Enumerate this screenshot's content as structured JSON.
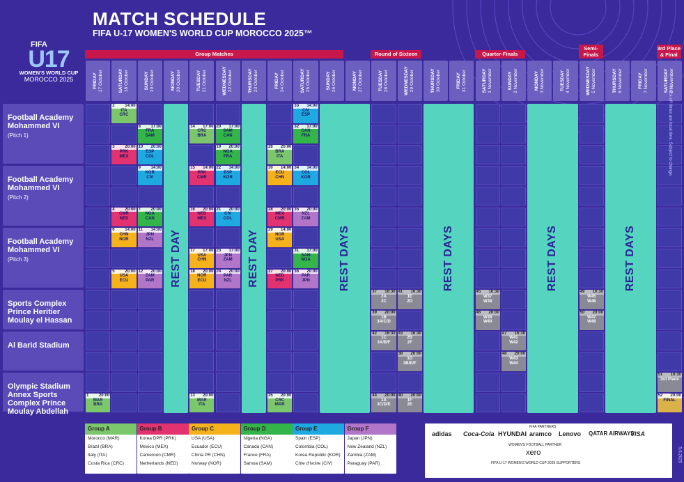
{
  "header": {
    "title": "MATCH SCHEDULE",
    "subtitle": "FIFA U-17 WOMEN'S WORLD CUP MOROCCO 2025™"
  },
  "logo": {
    "fifa": "FIFA",
    "u17": "U17",
    "wwc": "WOMEN'S WORLD CUP",
    "country": "MOROCCO 2025"
  },
  "phases": [
    {
      "label": "Group Matches",
      "from": 0,
      "to": 9
    },
    {
      "label": "Round of Sixteen",
      "from": 11,
      "to": 12
    },
    {
      "label": "Quarter-Finals",
      "from": 15,
      "to": 16
    },
    {
      "label": "Semi-Finals",
      "from": 19,
      "to": 19
    },
    {
      "label": "3rd Place & Final",
      "from": 22,
      "to": 22
    }
  ],
  "days": [
    {
      "day": "FRIDAY",
      "date": "17 October"
    },
    {
      "day": "SATURDAY",
      "date": "18 October"
    },
    {
      "day": "SUNDAY",
      "date": "19 October"
    },
    {
      "day": "MONDAY",
      "date": "20 October"
    },
    {
      "day": "TUESDAY",
      "date": "21 October"
    },
    {
      "day": "WEDNESDAY",
      "date": "22 October"
    },
    {
      "day": "THURSDAY",
      "date": "23 October"
    },
    {
      "day": "FRIDAY",
      "date": "24 October"
    },
    {
      "day": "SATURDAY",
      "date": "25 October"
    },
    {
      "day": "SUNDAY",
      "date": "26 October"
    },
    {
      "day": "MONDAY",
      "date": "27 October"
    },
    {
      "day": "TUESDAY",
      "date": "28 October"
    },
    {
      "day": "WEDNESDAY",
      "date": "29 October"
    },
    {
      "day": "THURSDAY",
      "date": "30 October"
    },
    {
      "day": "FRIDAY",
      "date": "31 October"
    },
    {
      "day": "SATURDAY",
      "date": "1 November"
    },
    {
      "day": "SUNDAY",
      "date": "2 November"
    },
    {
      "day": "MONDAY",
      "date": "3 November"
    },
    {
      "day": "TUESDAY",
      "date": "4 November"
    },
    {
      "day": "WEDNESDAY",
      "date": "5 November"
    },
    {
      "day": "THURSDAY",
      "date": "6 November"
    },
    {
      "day": "FRIDAY",
      "date": "7 November"
    },
    {
      "day": "SATURDAY",
      "date": "8 November"
    }
  ],
  "venues": [
    {
      "name": "Football Academy Mohammed VI",
      "sub": "(Pitch 1)"
    },
    {
      "name": "Football Academy Mohammed VI",
      "sub": "(Pitch 2)"
    },
    {
      "name": "Football Academy Mohammed VI",
      "sub": "(Pitch 3)"
    },
    {
      "name": "Sports Complex Prince Heritier Moulay el Hassan",
      "sub": ""
    },
    {
      "name": "Al Barid Stadium",
      "sub": ""
    },
    {
      "name": "Olympic Stadium Annex Sports Complex Prince Moulay Abdellah",
      "sub": ""
    }
  ],
  "rest": [
    {
      "label": "REST DAY",
      "col": 3
    },
    {
      "label": "REST DAY",
      "col": 6
    },
    {
      "label": "REST DAYS",
      "col": 9,
      "span": 2
    },
    {
      "label": "REST DAYS",
      "col": 13,
      "span": 2
    },
    {
      "label": "REST DAYS",
      "col": 17,
      "span": 2
    },
    {
      "label": "REST DAYS",
      "col": 20,
      "span": 2
    }
  ],
  "matches": [
    {
      "n": "2",
      "time": "14:00",
      "t1": "ITA",
      "t2": "CRC",
      "col": 1,
      "slot": 0,
      "g": "gA"
    },
    {
      "n": "8",
      "time": "17:00",
      "t1": "FRA",
      "t2": "SAM",
      "col": 2,
      "slot": 1,
      "g": "gD"
    },
    {
      "n": "3",
      "time": "20:00",
      "t1": "PRK",
      "t2": "MEX",
      "col": 1,
      "slot": 2,
      "g": "gB"
    },
    {
      "n": "10",
      "time": "20:00",
      "t1": "ESP",
      "t2": "COL",
      "col": 2,
      "slot": 2,
      "g": "gE"
    },
    {
      "n": "14",
      "time": "17:00",
      "t1": "CRC",
      "t2": "BRA",
      "col": 4,
      "slot": 1,
      "g": "gA"
    },
    {
      "n": "20",
      "time": "17:00",
      "t1": "SAM",
      "t2": "CAN",
      "col": 5,
      "slot": 1,
      "g": "gD"
    },
    {
      "n": "19",
      "time": "20:00",
      "t1": "NGA",
      "t2": "FRA",
      "col": 5,
      "slot": 2,
      "g": "gD"
    },
    {
      "n": "33",
      "time": "14:00",
      "t1": "CIV",
      "t2": "ESP",
      "col": 8,
      "slot": 0,
      "g": "gE"
    },
    {
      "n": "32",
      "time": "17:00",
      "t1": "CAN",
      "t2": "FRA",
      "col": 8,
      "slot": 1,
      "g": "gD"
    },
    {
      "n": "26",
      "time": "20:00",
      "t1": "BRA",
      "t2": "ITA",
      "col": 7,
      "slot": 2,
      "g": "gA"
    },
    {
      "n": "9",
      "time": "14:00",
      "t1": "KOR",
      "t2": "CIV",
      "col": 2,
      "slot": 3,
      "g": "gE"
    },
    {
      "n": "15",
      "time": "14:00",
      "t1": "PRK",
      "t2": "CMR",
      "col": 4,
      "slot": 3,
      "g": "gB"
    },
    {
      "n": "22",
      "time": "14:00",
      "t1": "ESP",
      "t2": "KOR",
      "col": 5,
      "slot": 3,
      "g": "gE"
    },
    {
      "n": "30",
      "time": "14:00",
      "t1": "ECU",
      "t2": "CHN",
      "col": 7,
      "slot": 3,
      "g": "gC"
    },
    {
      "n": "34",
      "time": "14:00",
      "t1": "COL",
      "t2": "KOR",
      "col": 8,
      "slot": 3,
      "g": "gE"
    },
    {
      "n": "4",
      "time": "20:00",
      "t1": "CMR",
      "t2": "NED",
      "col": 1,
      "slot": 5,
      "g": "gB"
    },
    {
      "n": "7",
      "time": "20:00",
      "t1": "NGA",
      "t2": "CAN",
      "col": 2,
      "slot": 5,
      "g": "gD"
    },
    {
      "n": "16",
      "time": "20:00",
      "t1": "NED",
      "t2": "MEX",
      "col": 4,
      "slot": 5,
      "g": "gB"
    },
    {
      "n": "21",
      "time": "20:00",
      "t1": "CIV",
      "t2": "COL",
      "col": 5,
      "slot": 5,
      "g": "gE"
    },
    {
      "n": "28",
      "time": "20:00",
      "t1": "MEX",
      "t2": "CMR",
      "col": 7,
      "slot": 5,
      "g": "gB"
    },
    {
      "n": "35",
      "time": "20:00",
      "t1": "NZL",
      "t2": "ZAM",
      "col": 8,
      "slot": 5,
      "g": "gF"
    },
    {
      "n": "6",
      "time": "14:00",
      "t1": "CHN",
      "t2": "NOR",
      "col": 1,
      "slot": 6,
      "g": "gC"
    },
    {
      "n": "11",
      "time": "14:00",
      "t1": "JPN",
      "t2": "NZL",
      "col": 2,
      "slot": 6,
      "g": "gF"
    },
    {
      "n": "29",
      "time": "14:00",
      "t1": "NOR",
      "t2": "USA",
      "col": 7,
      "slot": 6,
      "g": "gC"
    },
    {
      "n": "17",
      "time": "17:00",
      "t1": "USA",
      "t2": "CHN",
      "col": 4,
      "slot": 7,
      "g": "gC"
    },
    {
      "n": "23",
      "time": "17:00",
      "t1": "JPN",
      "t2": "ZAM",
      "col": 5,
      "slot": 7,
      "g": "gF"
    },
    {
      "n": "31",
      "time": "17:00",
      "t1": "SAM",
      "t2": "NGA",
      "col": 8,
      "slot": 7,
      "g": "gD"
    },
    {
      "n": "5",
      "time": "20:00",
      "t1": "USA",
      "t2": "ECU",
      "col": 1,
      "slot": 8,
      "g": "gC"
    },
    {
      "n": "12",
      "time": "20:00",
      "t1": "ZAM",
      "t2": "PAR",
      "col": 2,
      "slot": 8,
      "g": "gF"
    },
    {
      "n": "18",
      "time": "20:00",
      "t1": "NOR",
      "t2": "ECU",
      "col": 4,
      "slot": 8,
      "g": "gC"
    },
    {
      "n": "24",
      "time": "20:00",
      "t1": "PAR",
      "t2": "NZL",
      "col": 5,
      "slot": 8,
      "g": "gF"
    },
    {
      "n": "27",
      "time": "20:00",
      "t1": "NED",
      "t2": "PRK",
      "col": 7,
      "slot": 8,
      "g": "gB"
    },
    {
      "n": "36",
      "time": "20:00",
      "t1": "PAR",
      "t2": "JPN",
      "col": 8,
      "slot": 8,
      "g": "gF"
    },
    {
      "n": "37",
      "time": "16:30",
      "t1": "2A",
      "t2": "2C",
      "col": 11,
      "slot": 9,
      "g": "gK"
    },
    {
      "n": "41",
      "time": "16:30",
      "t1": "1E",
      "t2": "2D",
      "col": 12,
      "slot": 9,
      "g": "gK"
    },
    {
      "n": "45",
      "time": "16:30",
      "t1": "W37",
      "t2": "W38",
      "col": 15,
      "slot": 9,
      "g": "gK"
    },
    {
      "n": "49",
      "time": "16:30",
      "t1": "W45",
      "t2": "W46",
      "col": 19,
      "slot": 9,
      "g": "gK"
    },
    {
      "n": "39",
      "time": "20:00",
      "t1": "1B",
      "t2": "3A/C/D",
      "col": 11,
      "slot": 10,
      "g": "gK"
    },
    {
      "n": "46",
      "time": "20:00",
      "t1": "W39",
      "t2": "W40",
      "col": 15,
      "slot": 10,
      "g": "gK"
    },
    {
      "n": "50",
      "time": "20:00",
      "t1": "W47",
      "t2": "W48",
      "col": 19,
      "slot": 10,
      "g": "gK"
    },
    {
      "n": "42",
      "time": "16:30",
      "t1": "1C",
      "t2": "3A/B/F",
      "col": 11,
      "slot": 11,
      "g": "gK"
    },
    {
      "n": "43",
      "time": "16:30",
      "t1": "2B",
      "t2": "2F",
      "col": 12,
      "slot": 11,
      "g": "gK"
    },
    {
      "n": "47",
      "time": "16:30",
      "t1": "W41",
      "t2": "W42",
      "col": 16,
      "slot": 11,
      "g": "gK"
    },
    {
      "n": "38",
      "time": "20:00",
      "t1": "1D",
      "t2": "3B/E/F",
      "col": 12,
      "slot": 12,
      "g": "gK"
    },
    {
      "n": "48",
      "time": "20:00",
      "t1": "W43",
      "t2": "W44",
      "col": 16,
      "slot": 12,
      "g": "gK"
    },
    {
      "n": "51",
      "time": "16:30",
      "t1": "3rd Place",
      "t2": "",
      "col": 22,
      "slot": 13,
      "g": "gK"
    },
    {
      "n": "1",
      "time": "20:00",
      "t1": "MAR",
      "t2": "BRA",
      "col": 0,
      "slot": 14,
      "g": "gA"
    },
    {
      "n": "13",
      "time": "20:00",
      "t1": "MAR",
      "t2": "ITA",
      "col": 4,
      "slot": 14,
      "g": "gA"
    },
    {
      "n": "25",
      "time": "20:00",
      "t1": "CRC",
      "t2": "MAR",
      "col": 7,
      "slot": 14,
      "g": "gA"
    },
    {
      "n": "44",
      "time": "20:00",
      "t1": "1A",
      "t2": "3C/D/E",
      "col": 11,
      "slot": 14,
      "g": "gK"
    },
    {
      "n": "40",
      "time": "20:00",
      "t1": "1F",
      "t2": "2E",
      "col": 12,
      "slot": 14,
      "g": "gK"
    },
    {
      "n": "52",
      "time": "20:00",
      "t1": "FINAL",
      "t2": "",
      "col": 22,
      "slot": 14,
      "g": "gFin"
    }
  ],
  "groups": [
    {
      "name": "Group A",
      "color": "#7cc76b",
      "teams": [
        "Morocco (MAR)",
        "Brazil (BRA)",
        "Italy (ITA)",
        "Costa Rica (CRC)"
      ]
    },
    {
      "name": "Group B",
      "color": "#e2326f",
      "teams": [
        "Korea DPR (PRK)",
        "Mexico (MEX)",
        "Cameroon (CMR)",
        "Netherlands (NED)"
      ]
    },
    {
      "name": "Group C",
      "color": "#f6b21b",
      "teams": [
        "USA (USA)",
        "Ecuador (ECU)",
        "China PR (CHN)",
        "Norway (NOR)"
      ]
    },
    {
      "name": "Group D",
      "color": "#33b54a",
      "teams": [
        "Nigeria (NGA)",
        "Canada (CAN)",
        "France (FRA)",
        "Samoa (SAM)"
      ]
    },
    {
      "name": "Group E",
      "color": "#1fa9e1",
      "teams": [
        "Spain (ESP)",
        "Colombia (COL)",
        "Korea Republic (KOR)",
        "Côte d'Ivoire (CIV)"
      ]
    },
    {
      "name": "Group F",
      "color": "#b276c9",
      "teams": [
        "Japan (JPN)",
        "New Zealand (NZL)",
        "Zambia (ZAM)",
        "Paraguay (PAR)"
      ]
    }
  ],
  "sponsors": {
    "partners_label": "FIFA PARTNERS",
    "items": [
      "adidas",
      "Coca-Cola",
      "HYUNDAI",
      "aramco",
      "Lenovo",
      "QATAR AIRWAYS",
      "VISA"
    ],
    "supporter_label": "WOMEN'S FOOTBALL PARTNER",
    "supporter": "xero",
    "local_label": "FIFA U-17 WOMEN'S WORLD CUP 2025 SUPPORTERS"
  },
  "side_credit": "All kick-off times are local time. Subject to change.",
  "datestamp": "5.6.2025"
}
